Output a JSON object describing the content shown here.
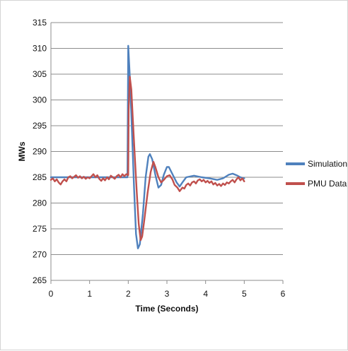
{
  "chart_data": {
    "type": "line",
    "title": "",
    "xlabel": "Time (Seconds)",
    "ylabel": "MWs",
    "xlim": [
      0,
      6
    ],
    "ylim": [
      265,
      315
    ],
    "x_ticks": [
      0,
      1,
      2,
      3,
      4,
      5,
      6
    ],
    "y_ticks": [
      265,
      270,
      275,
      280,
      285,
      290,
      295,
      300,
      305,
      310,
      315
    ],
    "grid": "horizontal",
    "legend_position": "right",
    "series": [
      {
        "name": "Simulation",
        "color": "#4f81bd",
        "points": [
          [
            0,
            285
          ],
          [
            0.5,
            285
          ],
          [
            1.0,
            285
          ],
          [
            1.5,
            285
          ],
          [
            1.98,
            285
          ],
          [
            2.0,
            310.5
          ],
          [
            2.05,
            303
          ],
          [
            2.1,
            293
          ],
          [
            2.15,
            283
          ],
          [
            2.2,
            274
          ],
          [
            2.25,
            271.2
          ],
          [
            2.3,
            272
          ],
          [
            2.38,
            278
          ],
          [
            2.45,
            285
          ],
          [
            2.52,
            289
          ],
          [
            2.56,
            289.5
          ],
          [
            2.62,
            288.5
          ],
          [
            2.7,
            285.5
          ],
          [
            2.78,
            283
          ],
          [
            2.85,
            283.5
          ],
          [
            2.92,
            285.5
          ],
          [
            3.0,
            287
          ],
          [
            3.05,
            287
          ],
          [
            3.15,
            285.5
          ],
          [
            3.25,
            284
          ],
          [
            3.33,
            283.2
          ],
          [
            3.4,
            284
          ],
          [
            3.5,
            285
          ],
          [
            3.7,
            285.3
          ],
          [
            3.9,
            285
          ],
          [
            4.1,
            284.8
          ],
          [
            4.3,
            284.5
          ],
          [
            4.45,
            284.8
          ],
          [
            4.6,
            285.5
          ],
          [
            4.7,
            285.7
          ],
          [
            4.8,
            285.4
          ],
          [
            4.9,
            285
          ],
          [
            5.0,
            284.8
          ]
        ]
      },
      {
        "name": "PMU Data",
        "color": "#c0504d",
        "points": [
          [
            0,
            284.5
          ],
          [
            0.05,
            284.8
          ],
          [
            0.1,
            284.2
          ],
          [
            0.15,
            284.6
          ],
          [
            0.2,
            284
          ],
          [
            0.25,
            283.6
          ],
          [
            0.3,
            284.2
          ],
          [
            0.35,
            284.6
          ],
          [
            0.4,
            284.2
          ],
          [
            0.45,
            285
          ],
          [
            0.5,
            285.2
          ],
          [
            0.55,
            284.8
          ],
          [
            0.6,
            285.1
          ],
          [
            0.65,
            285.4
          ],
          [
            0.7,
            284.9
          ],
          [
            0.75,
            285.2
          ],
          [
            0.8,
            284.8
          ],
          [
            0.85,
            285.1
          ],
          [
            0.9,
            284.7
          ],
          [
            0.95,
            285
          ],
          [
            1.0,
            284.8
          ],
          [
            1.05,
            285.2
          ],
          [
            1.1,
            285.6
          ],
          [
            1.15,
            285
          ],
          [
            1.2,
            285.4
          ],
          [
            1.25,
            284.7
          ],
          [
            1.3,
            284.3
          ],
          [
            1.35,
            284.8
          ],
          [
            1.4,
            284.4
          ],
          [
            1.45,
            285
          ],
          [
            1.5,
            284.6
          ],
          [
            1.55,
            285.3
          ],
          [
            1.6,
            285
          ],
          [
            1.65,
            284.7
          ],
          [
            1.7,
            285.2
          ],
          [
            1.75,
            285.5
          ],
          [
            1.8,
            285
          ],
          [
            1.85,
            285.6
          ],
          [
            1.9,
            285.2
          ],
          [
            1.95,
            285.6
          ],
          [
            2.0,
            285.4
          ],
          [
            2.01,
            298
          ],
          [
            2.04,
            304.5
          ],
          [
            2.08,
            302
          ],
          [
            2.12,
            296
          ],
          [
            2.17,
            289
          ],
          [
            2.22,
            282
          ],
          [
            2.27,
            276
          ],
          [
            2.32,
            272.8
          ],
          [
            2.36,
            273.5
          ],
          [
            2.42,
            277
          ],
          [
            2.5,
            282
          ],
          [
            2.58,
            286
          ],
          [
            2.65,
            288
          ],
          [
            2.7,
            287
          ],
          [
            2.78,
            285
          ],
          [
            2.85,
            284
          ],
          [
            2.92,
            284.5
          ],
          [
            3.0,
            285.2
          ],
          [
            3.07,
            285.4
          ],
          [
            3.14,
            284.6
          ],
          [
            3.2,
            283.5
          ],
          [
            3.27,
            283
          ],
          [
            3.33,
            282.3
          ],
          [
            3.4,
            283
          ],
          [
            3.45,
            282.8
          ],
          [
            3.5,
            283.5
          ],
          [
            3.55,
            283.8
          ],
          [
            3.6,
            283.4
          ],
          [
            3.65,
            284
          ],
          [
            3.7,
            284.2
          ],
          [
            3.75,
            283.8
          ],
          [
            3.8,
            284.4
          ],
          [
            3.85,
            284.6
          ],
          [
            3.9,
            284.2
          ],
          [
            3.95,
            284.5
          ],
          [
            4.0,
            284
          ],
          [
            4.05,
            284.3
          ],
          [
            4.1,
            283.9
          ],
          [
            4.15,
            284.2
          ],
          [
            4.2,
            283.6
          ],
          [
            4.25,
            283.9
          ],
          [
            4.3,
            283.4
          ],
          [
            4.35,
            283.7
          ],
          [
            4.4,
            283.3
          ],
          [
            4.45,
            283.8
          ],
          [
            4.5,
            283.5
          ],
          [
            4.55,
            284
          ],
          [
            4.6,
            283.8
          ],
          [
            4.65,
            284.2
          ],
          [
            4.7,
            284.5
          ],
          [
            4.75,
            284
          ],
          [
            4.8,
            284.6
          ],
          [
            4.85,
            285
          ],
          [
            4.9,
            284.4
          ],
          [
            4.95,
            284.8
          ],
          [
            5.0,
            284.2
          ]
        ]
      }
    ]
  }
}
